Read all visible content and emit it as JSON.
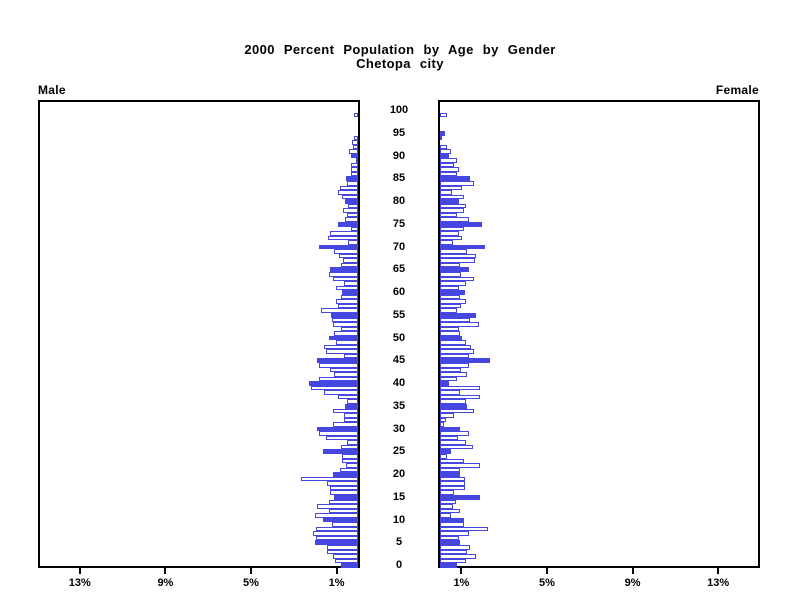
{
  "title": {
    "line1": "2000 Percent Population by Age by Gender",
    "line2": "Chetopa city"
  },
  "panels": {
    "left_label": "Male",
    "right_label": "Female"
  },
  "chart_data": {
    "type": "bar",
    "subtype": "population-pyramid",
    "title": "2000 Percent Population by Age by Gender",
    "subtitle": "Chetopa city",
    "xlabel_unit": "%",
    "age_min": 0,
    "age_max": 100,
    "age_tick_labels": [
      "0",
      "5",
      "10",
      "15",
      "20",
      "25",
      "30",
      "35",
      "40",
      "45",
      "50",
      "55",
      "60",
      "65",
      "70",
      "75",
      "80",
      "85",
      "90",
      "95",
      "100"
    ],
    "axis_ticks": [
      {
        "pct": 1,
        "label": "1%"
      },
      {
        "pct": 5,
        "label": "5%"
      },
      {
        "pct": 9,
        "label": "9%"
      },
      {
        "pct": 13,
        "label": "13%"
      }
    ],
    "axis_max_pct": 15,
    "legend_position": "none",
    "grid": false,
    "solid_bar_ages": "multiples of 5",
    "colors": {
      "bar_blue": "#4646E1",
      "outline_bar_fill": "#FFFFFF",
      "frame": "#000000",
      "text": "#000000",
      "background": "#FFFFFF"
    },
    "series": [
      {
        "name": "Male",
        "side": "left",
        "values_pct_by_age": [
          0.8,
          1.08,
          1.15,
          1.45,
          1.45,
          2.0,
          1.95,
          2.1,
          1.95,
          1.2,
          1.65,
          2.0,
          1.35,
          1.9,
          1.35,
          1.1,
          1.3,
          1.3,
          1.45,
          2.65,
          1.15,
          0.85,
          0.55,
          0.75,
          0.75,
          1.65,
          0.8,
          0.5,
          1.5,
          1.8,
          1.9,
          1.15,
          0.65,
          0.65,
          1.15,
          0.6,
          0.5,
          0.95,
          1.6,
          2.2,
          2.3,
          1.8,
          1.1,
          1.3,
          1.8,
          1.9,
          0.65,
          1.5,
          1.6,
          1.05,
          1.35,
          1.1,
          0.8,
          1.15,
          1.2,
          1.25,
          1.75,
          0.95,
          1.05,
          0.8,
          0.75,
          1.05,
          0.65,
          1.15,
          1.35,
          1.3,
          0.8,
          0.7,
          0.9,
          1.1,
          1.8,
          0.45,
          1.4,
          1.3,
          0.35,
          0.95,
          0.6,
          0.5,
          0.7,
          0.45,
          0.6,
          0.75,
          0.95,
          0.85,
          0.5,
          0.55,
          0.35,
          0.35,
          0.35,
          0.1,
          0.35,
          0.4,
          0.25,
          0.3,
          0.2,
          0.0,
          0.0,
          0.0,
          0.0,
          0.2,
          0.0
        ]
      },
      {
        "name": "Female",
        "side": "right",
        "values_pct_by_age": [
          0.8,
          1.2,
          1.7,
          1.25,
          1.4,
          0.95,
          0.9,
          1.35,
          2.25,
          1.1,
          1.1,
          0.5,
          0.95,
          0.6,
          0.75,
          1.85,
          0.65,
          1.15,
          1.15,
          1.15,
          0.95,
          0.95,
          1.85,
          1.1,
          0.35,
          0.5,
          1.55,
          1.2,
          0.85,
          1.35,
          0.95,
          0.2,
          0.3,
          0.65,
          1.6,
          1.25,
          1.2,
          1.85,
          0.95,
          1.85,
          0.4,
          0.8,
          1.25,
          1.0,
          1.35,
          2.35,
          1.35,
          1.6,
          1.45,
          1.2,
          1.05,
          0.95,
          0.9,
          1.8,
          1.4,
          1.7,
          0.8,
          1.0,
          1.2,
          0.95,
          1.15,
          0.9,
          1.2,
          1.6,
          1.0,
          1.35,
          0.95,
          1.65,
          1.7,
          1.25,
          2.1,
          0.6,
          1.05,
          0.9,
          1.1,
          1.95,
          1.35,
          0.8,
          1.1,
          1.2,
          0.9,
          1.1,
          0.55,
          1.05,
          1.6,
          1.4,
          0.8,
          0.9,
          0.65,
          0.8,
          0.4,
          0.5,
          0.35,
          0.0,
          0.1,
          0.25,
          0.0,
          0.0,
          0.0,
          0.35,
          0.0
        ]
      }
    ]
  }
}
